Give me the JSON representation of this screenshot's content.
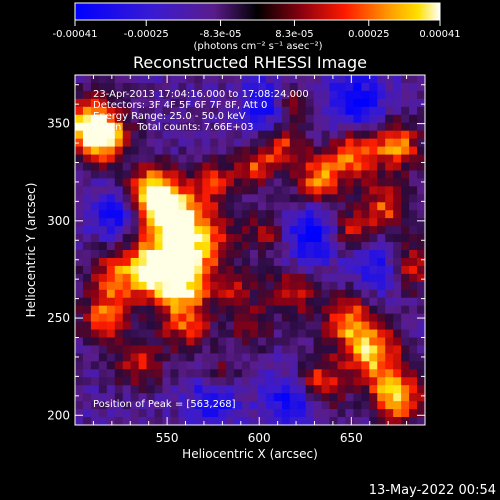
{
  "colorbar": {
    "ticks": [
      "-0.00041",
      "-0.00025",
      "-8.3e-05",
      "8.3e-05",
      "0.00025",
      "0.00041"
    ],
    "unit_label": "(photons cm⁻² s⁻¹ asec⁻²)",
    "range": [
      -0.00041,
      0.00041
    ]
  },
  "chart_data": {
    "type": "heatmap",
    "title": "Reconstructed RHESSI Image",
    "xlabel": "Heliocentric X (arcsec)",
    "ylabel": "Heliocentric Y (arcsec)",
    "xlim": [
      500,
      690
    ],
    "ylim": [
      195,
      375
    ],
    "x_ticks": [
      "550",
      "600",
      "650"
    ],
    "y_ticks": [
      "200",
      "250",
      "300",
      "350"
    ],
    "x_tick_values": [
      550,
      600,
      650
    ],
    "y_tick_values": [
      200,
      250,
      300,
      350
    ],
    "annotations": [
      "23-Apr-2013 17:04:16.000 to 17:08:24.000",
      "Detectors: 3F 4F 5F 6F 7F 8F, Att 0",
      "Energy Range: 25.0 - 50.0 keV",
      "Clean     Total counts: 7.66E+03"
    ],
    "peak_label": "Position of Peak = [563,268]",
    "peak_position": [
      563,
      268
    ],
    "colors": {
      "min": "#0000ff",
      "mid_low": "#6a3cbd",
      "zero": "#000000",
      "mid": "#ff0000",
      "high": "#ffa500",
      "max": "#ffffff"
    }
  },
  "footer": {
    "timestamp": "13-May-2022 00:54"
  }
}
